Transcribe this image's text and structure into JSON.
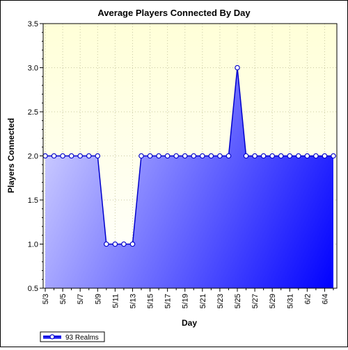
{
  "chart_data": {
    "type": "area",
    "title": "Average Players Connected By Day",
    "xlabel": "Day",
    "ylabel": "Players Connected",
    "ylim": [
      0.5,
      3.5
    ],
    "yticks": [
      "0.5",
      "1.0",
      "1.5",
      "2.0",
      "2.5",
      "3.0",
      "3.5"
    ],
    "xtick_labels": [
      "5/3",
      "5/5",
      "5/7",
      "5/9",
      "5/11",
      "5/13",
      "5/15",
      "5/17",
      "5/19",
      "5/21",
      "5/23",
      "5/25",
      "5/27",
      "5/29",
      "5/31",
      "6/2",
      "6/4"
    ],
    "categories": [
      "5/3",
      "5/4",
      "5/5",
      "5/6",
      "5/7",
      "5/8",
      "5/9",
      "5/10",
      "5/11",
      "5/12",
      "5/13",
      "5/14",
      "5/15",
      "5/16",
      "5/17",
      "5/18",
      "5/19",
      "5/20",
      "5/21",
      "5/22",
      "5/23",
      "5/24",
      "5/25",
      "5/26",
      "5/27",
      "5/28",
      "5/29",
      "5/30",
      "5/31",
      "6/1",
      "6/2",
      "6/3",
      "6/4",
      "6/5"
    ],
    "series": [
      {
        "name": "93 Realms",
        "values": [
          2,
          2,
          2,
          2,
          2,
          2,
          2,
          1,
          1,
          1,
          1,
          2,
          2,
          2,
          2,
          2,
          2,
          2,
          2,
          2,
          2,
          2,
          3,
          2,
          2,
          2,
          2,
          2,
          2,
          2,
          2,
          2,
          2,
          2
        ]
      }
    ],
    "grid": true,
    "legend": "bottom-left",
    "colors": {
      "plot_top": "#ffffd8",
      "plot_bottom": "#ffffff",
      "area_light": "#c8c8ff",
      "area_dark": "#0000ff",
      "line": "#0000cc",
      "marker_fill": "#ffffff"
    }
  }
}
